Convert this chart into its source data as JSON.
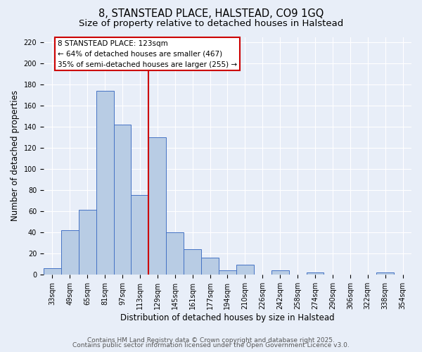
{
  "title": "8, STANSTEAD PLACE, HALSTEAD, CO9 1GQ",
  "subtitle": "Size of property relative to detached houses in Halstead",
  "xlabel": "Distribution of detached houses by size in Halstead",
  "ylabel": "Number of detached properties",
  "bar_labels": [
    "33sqm",
    "49sqm",
    "65sqm",
    "81sqm",
    "97sqm",
    "113sqm",
    "129sqm",
    "145sqm",
    "161sqm",
    "177sqm",
    "194sqm",
    "210sqm",
    "226sqm",
    "242sqm",
    "258sqm",
    "274sqm",
    "290sqm",
    "306sqm",
    "322sqm",
    "338sqm",
    "354sqm"
  ],
  "bar_heights": [
    6,
    42,
    61,
    174,
    142,
    75,
    130,
    40,
    24,
    16,
    4,
    9,
    0,
    4,
    0,
    2,
    0,
    0,
    0,
    2,
    0
  ],
  "bar_color": "#b8cce4",
  "bar_edge_color": "#4472c4",
  "vline_x": 6,
  "vline_color": "#cc0000",
  "annotation_title": "8 STANSTEAD PLACE: 123sqm",
  "annotation_line1": "← 64% of detached houses are smaller (467)",
  "annotation_line2": "35% of semi-detached houses are larger (255) →",
  "annotation_box_color": "#ffffff",
  "annotation_box_edge": "#cc0000",
  "ylim": [
    0,
    225
  ],
  "yticks": [
    0,
    20,
    40,
    60,
    80,
    100,
    120,
    140,
    160,
    180,
    200,
    220
  ],
  "footer1": "Contains HM Land Registry data © Crown copyright and database right 2025.",
  "footer2": "Contains public sector information licensed under the Open Government Licence v3.0.",
  "bg_color": "#e8eef8",
  "plot_bg_color": "#e8eef8",
  "title_fontsize": 10.5,
  "subtitle_fontsize": 9.5,
  "tick_fontsize": 7,
  "label_fontsize": 8.5,
  "footer_fontsize": 6.5
}
